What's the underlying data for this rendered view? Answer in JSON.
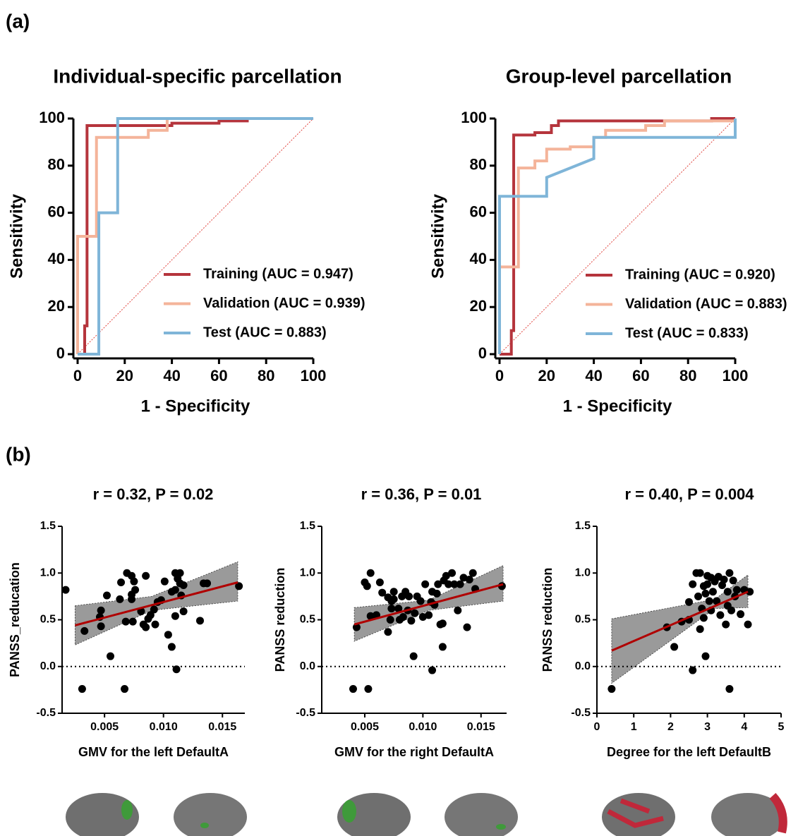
{
  "panel_labels": [
    "(a)",
    "(b)"
  ],
  "chart_data": [
    {
      "type": "line",
      "title": "Individual-specific parcellation",
      "x_label": "1 - Specificity",
      "y_label": "Sensitivity",
      "xlim": [
        0,
        100
      ],
      "ylim": [
        0,
        100
      ],
      "xticks": [
        0,
        20,
        40,
        60,
        80,
        100
      ],
      "yticks": [
        0,
        20,
        40,
        60,
        80,
        100
      ],
      "reference_diagonal": true,
      "legend": "lower right",
      "series": [
        {
          "name": "Training (AUC = 0.947)",
          "color": "#b5343c",
          "x": [
            0,
            3,
            3,
            4,
            4,
            40,
            40,
            60,
            60,
            72,
            72,
            100
          ],
          "values": [
            0,
            0,
            12,
            12,
            97,
            97,
            98,
            98,
            99,
            99,
            100,
            100
          ]
        },
        {
          "name": "Validation (AUC = 0.939)",
          "color": "#f4b49a",
          "x": [
            0,
            0,
            8,
            8,
            30,
            30,
            38,
            38,
            100
          ],
          "values": [
            0,
            50,
            50,
            92,
            92,
            95,
            95,
            100,
            100
          ]
        },
        {
          "name": "Test (AUC = 0.883)",
          "color": "#7fb5d8",
          "x": [
            0,
            9,
            9,
            17,
            17,
            100
          ],
          "values": [
            0,
            0,
            60,
            60,
            100,
            100
          ]
        }
      ]
    },
    {
      "type": "line",
      "title": "Group-level parcellation",
      "x_label": "1 - Specificity",
      "y_label": "Sensitivity",
      "xlim": [
        0,
        100
      ],
      "ylim": [
        0,
        100
      ],
      "xticks": [
        0,
        20,
        40,
        60,
        80,
        100
      ],
      "yticks": [
        0,
        20,
        40,
        60,
        80,
        100
      ],
      "reference_diagonal": true,
      "legend": "lower right",
      "series": [
        {
          "name": "Training (AUC = 0.920)",
          "color": "#b5343c",
          "x": [
            0,
            5,
            5,
            6,
            6,
            15,
            15,
            22,
            22,
            25,
            25,
            90,
            90,
            100
          ],
          "values": [
            0,
            0,
            10,
            10,
            93,
            93,
            94,
            94,
            97,
            97,
            99,
            99,
            100,
            100
          ]
        },
        {
          "name": "Validation (AUC = 0.883)",
          "color": "#f4b49a",
          "x": [
            0,
            0,
            8,
            8,
            15,
            15,
            20,
            20,
            30,
            30,
            40,
            40,
            45,
            45,
            62,
            62,
            70,
            70,
            100,
            100
          ],
          "values": [
            0,
            37,
            37,
            79,
            79,
            82,
            82,
            87,
            87,
            88,
            88,
            92,
            92,
            95,
            95,
            97,
            97,
            99,
            99,
            100
          ]
        },
        {
          "name": "Test (AUC = 0.833)",
          "color": "#7fb5d8",
          "x": [
            0,
            0,
            20,
            20,
            40,
            40,
            100,
            100
          ],
          "values": [
            0,
            67,
            67,
            75,
            83,
            92,
            92,
            100
          ]
        }
      ]
    },
    {
      "type": "scatter",
      "title": "r = 0.32, P = 0.02",
      "x_label": "GMV for the left DefaultA",
      "y_label": "PANSS_reducation",
      "xlim": [
        0.0014,
        0.0169
      ],
      "ylim": [
        -0.5,
        1.5
      ],
      "xticks": [
        0.005,
        {
          "value": 0.01,
          "label": "0.010"
        },
        0.015
      ],
      "yticks": [
        -0.5,
        {
          "value": 0,
          "label": "0.0"
        },
        0.5,
        {
          "value": 1,
          "label": "1.0"
        },
        1.5
      ],
      "reference_line": 0,
      "color": "#000000",
      "x": [
        0.0017,
        0.0031,
        0.0033,
        0.0046,
        0.0047,
        0.0047,
        0.0052,
        0.0055,
        0.0063,
        0.0064,
        0.0067,
        0.0068,
        0.0069,
        0.0073,
        0.0073,
        0.0073,
        0.0075,
        0.0076,
        0.0074,
        0.0081,
        0.0083,
        0.0085,
        0.0085,
        0.0087,
        0.0089,
        0.0092,
        0.0093,
        0.0095,
        0.0098,
        0.0101,
        0.0104,
        0.0107,
        0.0107,
        0.011,
        0.011,
        0.011,
        0.0111,
        0.0112,
        0.0114,
        0.0114,
        0.0115,
        0.0117,
        0.0117,
        0.0131,
        0.0134,
        0.0137,
        0.0164
      ],
      "values": [
        0.82,
        -0.24,
        0.38,
        0.53,
        0.6,
        0.43,
        0.76,
        0.11,
        0.72,
        0.9,
        -0.24,
        0.48,
        1.0,
        0.97,
        0.72,
        0.77,
        0.91,
        0.82,
        0.48,
        0.59,
        0.45,
        0.97,
        0.42,
        0.51,
        0.55,
        0.61,
        0.45,
        0.69,
        0.71,
        0.91,
        0.34,
        0.21,
        0.8,
        0.54,
        0.82,
        1.0,
        -0.03,
        0.94,
        1.0,
        0.89,
        0.76,
        0.59,
        0.87,
        0.49,
        0.89,
        0.89,
        0.86
      ],
      "fit": {
        "color": "#b00000",
        "x": [
          0.0025,
          0.0163
        ],
        "values": [
          0.44,
          0.9
        ]
      },
      "ci": {
        "color": "#9a9a9a",
        "x": [
          0.0025,
          0.009,
          0.0163
        ],
        "lower": [
          0.23,
          0.6,
          0.7
        ],
        "upper": [
          0.65,
          0.75,
          1.12
        ]
      }
    },
    {
      "type": "scatter",
      "title": "r = 0.36, P = 0.01",
      "x_label": "GMV for the right DefaultA",
      "y_label": "PANSS reduction",
      "xlim": [
        0.0013,
        0.0172
      ],
      "ylim": [
        -0.5,
        1.5
      ],
      "xticks": [
        0.005,
        {
          "value": 0.01,
          "label": "0.010"
        },
        0.015
      ],
      "yticks": [
        -0.5,
        {
          "value": 0,
          "label": "0.0"
        },
        0.5,
        {
          "value": 1,
          "label": "1.0"
        },
        1.5
      ],
      "reference_line": 0,
      "color": "#000000",
      "x": [
        0.004,
        0.0053,
        0.0043,
        0.005,
        0.0052,
        0.0055,
        0.0055,
        0.006,
        0.0063,
        0.0065,
        0.007,
        0.007,
        0.0072,
        0.0073,
        0.0073,
        0.0075,
        0.0075,
        0.0079,
        0.008,
        0.0082,
        0.0083,
        0.0085,
        0.0087,
        0.0088,
        0.009,
        0.0092,
        0.0093,
        0.0095,
        0.0098,
        0.01,
        0.0102,
        0.0105,
        0.0107,
        0.0108,
        0.0108,
        0.011,
        0.0112,
        0.0113,
        0.0115,
        0.0117,
        0.0117,
        0.0118,
        0.012,
        0.0122,
        0.0125,
        0.0127,
        0.013,
        0.0132,
        0.0135,
        0.0138,
        0.014,
        0.0143,
        0.0145,
        0.0168
      ],
      "values": [
        -0.24,
        -0.24,
        0.42,
        0.9,
        0.86,
        0.54,
        1.0,
        0.55,
        0.9,
        0.79,
        0.37,
        0.74,
        0.5,
        0.62,
        0.7,
        0.8,
        0.72,
        0.62,
        0.5,
        0.75,
        0.53,
        0.8,
        0.6,
        0.75,
        0.49,
        0.11,
        0.57,
        0.75,
        0.7,
        0.53,
        0.88,
        0.55,
        0.69,
        0.8,
        -0.04,
        0.66,
        0.78,
        0.88,
        0.45,
        0.46,
        0.21,
        0.92,
        0.97,
        0.88,
        1.0,
        0.88,
        0.6,
        0.88,
        0.95,
        0.42,
        0.93,
        1.0,
        0.83,
        0.86
      ],
      "fit": {
        "color": "#b00000",
        "x": [
          0.0041,
          0.0169
        ],
        "values": [
          0.45,
          0.88
        ]
      },
      "ci": {
        "color": "#9a9a9a",
        "x": [
          0.0041,
          0.0105,
          0.0169
        ],
        "lower": [
          0.27,
          0.6,
          0.7
        ],
        "upper": [
          0.63,
          0.71,
          1.08
        ]
      }
    },
    {
      "type": "scatter",
      "title": "r = 0.40, P = 0.004",
      "x_label": "Degree for the left DefaultB",
      "y_label": "PANSS reduction",
      "xlim": [
        0,
        5
      ],
      "ylim": [
        -0.5,
        1.5
      ],
      "xticks": [
        0,
        1,
        2,
        3,
        4,
        5
      ],
      "yticks": [
        -0.5,
        {
          "value": 0,
          "label": "0.0"
        },
        0.5,
        {
          "value": 1,
          "label": "1.0"
        },
        1.5
      ],
      "reference_line": 0,
      "color": "#000000",
      "x": [
        0.4,
        1.9,
        2.1,
        2.3,
        2.5,
        2.5,
        2.6,
        2.6,
        2.7,
        2.75,
        2.8,
        2.8,
        2.85,
        2.9,
        2.9,
        2.95,
        3.0,
        3.0,
        3.05,
        3.1,
        3.1,
        3.15,
        3.2,
        3.25,
        3.3,
        3.35,
        3.4,
        3.45,
        3.5,
        3.55,
        3.6,
        3.6,
        3.65,
        3.7,
        3.75,
        3.8,
        3.9,
        4.0,
        4.1,
        4.15,
        3.55,
        2.95
      ],
      "values": [
        -0.24,
        0.42,
        0.21,
        0.48,
        0.5,
        0.69,
        -0.04,
        0.88,
        1.0,
        0.75,
        1.0,
        0.4,
        0.62,
        0.86,
        0.52,
        0.11,
        0.97,
        0.88,
        0.7,
        0.95,
        0.6,
        0.8,
        0.91,
        0.7,
        0.96,
        0.55,
        0.87,
        0.93,
        0.45,
        0.8,
        1.0,
        -0.24,
        0.6,
        0.92,
        0.75,
        0.82,
        0.56,
        0.82,
        0.45,
        0.8,
        0.65,
        0.78
      ],
      "fit": {
        "color": "#b00000",
        "x": [
          0.4,
          4.1
        ],
        "values": [
          0.17,
          0.8
        ]
      },
      "ci": {
        "color": "#9a9a9a",
        "x": [
          0.4,
          3.2,
          4.1
        ],
        "lower": [
          -0.18,
          0.62,
          0.63
        ],
        "upper": [
          0.51,
          0.72,
          0.98
        ]
      }
    }
  ]
}
